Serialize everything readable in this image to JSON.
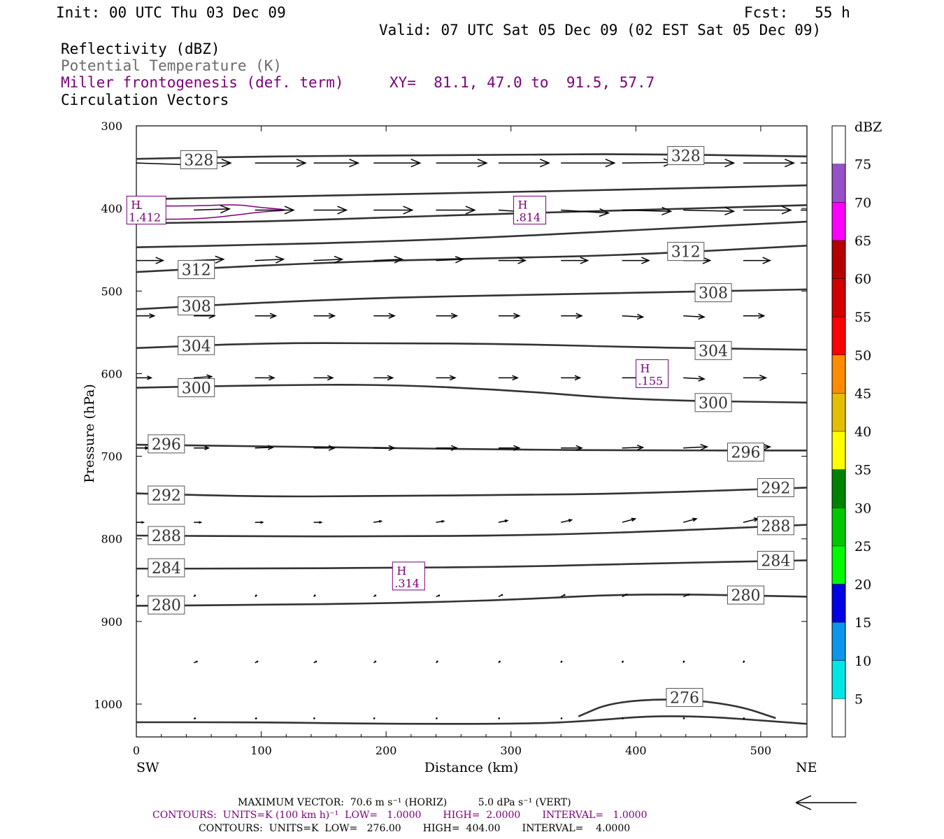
{
  "header": {
    "init": "Init: 00 UTC Thu 03 Dec 09",
    "fcst": "Fcst:   55 h",
    "valid": "Valid: 07 UTC Sat 05 Dec 09 (02 EST Sat 05 Dec 09)",
    "field1": "Reflectivity (dBZ)",
    "field2": "Potential Temperature (K)",
    "field3": "Miller frontogenesis (def. term)",
    "xy": "XY=  81.1, 47.0 to  91.5, 57.7",
    "field4": "Circulation Vectors"
  },
  "footer": {
    "max_vector": "MAXIMUM VECTOR:  70.6 m s⁻¹ (HORIZ)          5.0 dPa s⁻¹ (VERT)",
    "contours_fronto": "CONTOURS:  UNITS=K (100 km h)⁻¹  LOW=   1.0000       HIGH=  2.0000       INTERVAL=   1.0000",
    "contours_theta": "CONTOURS:  UNITS=K  LOW=   276.00       HIGH=  404.00       INTERVAL=    4.0000"
  },
  "colors": {
    "fronto": "#7a007a",
    "theta": "#333333",
    "vector": "#000000"
  },
  "chart_data": {
    "type": "cross-section",
    "xlabel": "Distance (km)",
    "ylabel": "Pressure (hPa)",
    "xlim": [
      0,
      537
    ],
    "ylim": [
      1040,
      300
    ],
    "x_ticks": [
      "0",
      "100",
      "200",
      "300",
      "400",
      "500"
    ],
    "x_tick_values": [
      0,
      100,
      200,
      300,
      400,
      500
    ],
    "y_ticks": [
      "300",
      "400",
      "500",
      "600",
      "700",
      "800",
      "900",
      "1000"
    ],
    "y_tick_values": [
      300,
      400,
      500,
      600,
      700,
      800,
      900,
      1000
    ],
    "left_end": "SW",
    "right_end": "NE",
    "colorbar": {
      "title": "dBZ",
      "labels": [
        "75",
        "70",
        "65",
        "60",
        "55",
        "50",
        "45",
        "40",
        "35",
        "30",
        "25",
        "20",
        "15",
        "10",
        "5"
      ],
      "bins": [
        {
          "from": 0,
          "to": 5,
          "color": "#ffffff"
        },
        {
          "from": 5,
          "to": 10,
          "color": "#00e6e6"
        },
        {
          "from": 10,
          "to": 15,
          "color": "#0a96eb"
        },
        {
          "from": 15,
          "to": 20,
          "color": "#0000e6"
        },
        {
          "from": 20,
          "to": 25,
          "color": "#00fa00"
        },
        {
          "from": 25,
          "to": 30,
          "color": "#00c800"
        },
        {
          "from": 30,
          "to": 35,
          "color": "#008200"
        },
        {
          "from": 35,
          "to": 40,
          "color": "#ffff00"
        },
        {
          "from": 40,
          "to": 45,
          "color": "#e6be00"
        },
        {
          "from": 45,
          "to": 50,
          "color": "#ff8c00"
        },
        {
          "from": 50,
          "to": 55,
          "color": "#ff0000"
        },
        {
          "from": 55,
          "to": 60,
          "color": "#d20000"
        },
        {
          "from": 60,
          "to": 65,
          "color": "#b40000"
        },
        {
          "from": 65,
          "to": 70,
          "color": "#ff00ff"
        },
        {
          "from": 70,
          "to": 75,
          "color": "#9650c8"
        },
        {
          "from": 75,
          "to": 80,
          "color": "#ffffff"
        }
      ]
    },
    "theta_contours": [
      {
        "level": 328,
        "label": "328",
        "points": [
          [
            0,
            340
          ],
          [
            100,
            337
          ],
          [
            200,
            336
          ],
          [
            300,
            335
          ],
          [
            400,
            334
          ],
          [
            537,
            337
          ]
        ],
        "labels_at": [
          [
            50,
            341
          ],
          [
            440,
            336
          ]
        ]
      },
      {
        "level": 324,
        "label": "",
        "points": [
          [
            0,
            389
          ],
          [
            100,
            386
          ],
          [
            200,
            383
          ],
          [
            300,
            380
          ],
          [
            400,
            377
          ],
          [
            537,
            372
          ]
        ],
        "labels_at": []
      },
      {
        "level": 320,
        "label": "",
        "points": [
          [
            0,
            418
          ],
          [
            100,
            416
          ],
          [
            200,
            411
          ],
          [
            300,
            406
          ],
          [
            400,
            402
          ],
          [
            537,
            396
          ]
        ],
        "labels_at": []
      },
      {
        "level": 316,
        "label": "",
        "points": [
          [
            0,
            447
          ],
          [
            100,
            444
          ],
          [
            200,
            440
          ],
          [
            300,
            434
          ],
          [
            400,
            426
          ],
          [
            537,
            416
          ]
        ],
        "labels_at": []
      },
      {
        "level": 312,
        "label": "312",
        "points": [
          [
            0,
            477
          ],
          [
            100,
            469
          ],
          [
            200,
            463
          ],
          [
            300,
            460
          ],
          [
            400,
            456
          ],
          [
            537,
            445
          ]
        ],
        "labels_at": [
          [
            48,
            474
          ],
          [
            440,
            452
          ]
        ]
      },
      {
        "level": 308,
        "label": "308",
        "points": [
          [
            0,
            522
          ],
          [
            100,
            514
          ],
          [
            200,
            508
          ],
          [
            300,
            505
          ],
          [
            400,
            502
          ],
          [
            537,
            498
          ]
        ],
        "labels_at": [
          [
            48,
            518
          ],
          [
            462,
            502
          ]
        ]
      },
      {
        "level": 304,
        "label": "304",
        "points": [
          [
            0,
            569
          ],
          [
            100,
            563
          ],
          [
            200,
            563
          ],
          [
            300,
            564
          ],
          [
            400,
            568
          ],
          [
            537,
            571
          ]
        ],
        "labels_at": [
          [
            48,
            566
          ],
          [
            462,
            572
          ]
        ]
      },
      {
        "level": 300,
        "label": "300",
        "points": [
          [
            0,
            617
          ],
          [
            100,
            614
          ],
          [
            200,
            613
          ],
          [
            300,
            620
          ],
          [
            400,
            632
          ],
          [
            537,
            635
          ]
        ],
        "labels_at": [
          [
            48,
            617
          ],
          [
            462,
            635
          ]
        ]
      },
      {
        "level": 296,
        "label": "296",
        "points": [
          [
            0,
            686
          ],
          [
            100,
            688
          ],
          [
            200,
            690
          ],
          [
            300,
            692
          ],
          [
            400,
            693
          ],
          [
            537,
            693
          ]
        ],
        "labels_at": [
          [
            24,
            685
          ],
          [
            488,
            695
          ]
        ]
      },
      {
        "level": 292,
        "label": "292",
        "points": [
          [
            0,
            745
          ],
          [
            100,
            749
          ],
          [
            200,
            748
          ],
          [
            300,
            747
          ],
          [
            400,
            745
          ],
          [
            537,
            738
          ]
        ],
        "labels_at": [
          [
            24,
            747
          ],
          [
            512,
            738
          ]
        ]
      },
      {
        "level": 288,
        "label": "288",
        "points": [
          [
            0,
            796
          ],
          [
            100,
            797
          ],
          [
            200,
            797
          ],
          [
            300,
            796
          ],
          [
            400,
            792
          ],
          [
            537,
            783
          ]
        ],
        "labels_at": [
          [
            24,
            796
          ],
          [
            512,
            784
          ]
        ]
      },
      {
        "level": 284,
        "label": "284",
        "points": [
          [
            0,
            836
          ],
          [
            100,
            836
          ],
          [
            200,
            835
          ],
          [
            300,
            834
          ],
          [
            400,
            830
          ],
          [
            537,
            826
          ]
        ],
        "labels_at": [
          [
            24,
            835
          ],
          [
            512,
            826
          ]
        ]
      },
      {
        "level": 280,
        "label": "280",
        "points": [
          [
            0,
            881
          ],
          [
            100,
            880
          ],
          [
            200,
            878
          ],
          [
            300,
            874
          ],
          [
            400,
            866
          ],
          [
            537,
            870
          ]
        ],
        "labels_at": [
          [
            24,
            880
          ],
          [
            488,
            868
          ]
        ]
      },
      {
        "level": 276,
        "label": "276",
        "points": [
          [
            354,
            1015
          ],
          [
            380,
            998
          ],
          [
            430,
            993
          ],
          [
            480,
            1001
          ],
          [
            512,
            1017
          ]
        ],
        "labels_at": [
          [
            439,
            992
          ]
        ]
      },
      {
        "level": 276,
        "label": "",
        "points": [
          [
            0,
            1022
          ],
          [
            100,
            1022
          ],
          [
            200,
            1024
          ],
          [
            300,
            1024
          ],
          [
            350,
            1022
          ],
          [
            430,
            1012
          ],
          [
            537,
            1024
          ]
        ],
        "labels_at": []
      }
    ],
    "frontogenesis_maxima": [
      {
        "label": "H",
        "value": ".314",
        "x": 218,
        "p": 845
      },
      {
        "label": "H",
        "value": ".155",
        "x": 413,
        "p": 600
      },
      {
        "label": "H",
        "value": ".814",
        "x": 315,
        "p": 402
      },
      {
        "label": "H",
        "value": "1.412",
        "x": 8,
        "p": 402
      }
    ],
    "frontogenesis_contour": {
      "level": 1.0,
      "points": [
        [
          5,
          397
        ],
        [
          50,
          397
        ],
        [
          80,
          395
        ],
        [
          100,
          399
        ],
        [
          125,
          402
        ],
        [
          100,
          404
        ],
        [
          80,
          408
        ],
        [
          50,
          413
        ],
        [
          5,
          413
        ]
      ]
    },
    "vector_rows": [
      {
        "p": 345,
        "x": [
          0,
          46,
          95,
          142,
          190,
          240,
          290,
          340,
          389,
          438,
          486,
          532
        ],
        "u": [
          0.9,
          0.62,
          0.85,
          0.75,
          0.78,
          0.85,
          0.85,
          0.9,
          0.85,
          0.85,
          0.85,
          0.85
        ],
        "w": [
          -0.03,
          0,
          0,
          0,
          0,
          0,
          0,
          0,
          0.01,
          0,
          0,
          0
        ]
      },
      {
        "p": 402,
        "x": [
          0,
          46,
          95,
          142,
          190,
          240,
          290,
          340,
          389,
          438,
          486,
          532
        ],
        "u": [
          0.35,
          0.6,
          0.65,
          0.55,
          0.65,
          0.65,
          0.75,
          0.8,
          0.82,
          0.85,
          0.8,
          0.7
        ],
        "w": [
          0,
          0.02,
          0,
          0,
          0,
          0,
          -0.05,
          -0.05,
          -0.02,
          -0.02,
          0,
          0
        ]
      },
      {
        "p": 463,
        "x": [
          0,
          46,
          95,
          142,
          190,
          240,
          290,
          340,
          389,
          438,
          486
        ],
        "u": [
          0.45,
          0.5,
          0.48,
          0.48,
          0.48,
          0.45,
          0.45,
          0.45,
          0.45,
          0.45,
          0.45
        ],
        "w": [
          0,
          0.02,
          0.02,
          0.02,
          0.02,
          0.02,
          0,
          0,
          0,
          0,
          0
        ]
      },
      {
        "p": 530,
        "x": [
          0,
          46,
          95,
          142,
          190,
          240,
          290,
          340,
          389,
          438,
          486
        ],
        "u": [
          0.3,
          0.35,
          0.35,
          0.35,
          0.35,
          0.35,
          0.35,
          0.35,
          0.35,
          0.35,
          0.35
        ],
        "w": [
          0,
          0,
          0,
          0,
          0,
          0,
          0,
          0,
          -0.02,
          -0.02,
          0
        ]
      },
      {
        "p": 605,
        "x": [
          0,
          46,
          95,
          142,
          190,
          240,
          290,
          340,
          389,
          438,
          486
        ],
        "u": [
          0.25,
          0.3,
          0.32,
          0.32,
          0.32,
          0.32,
          0.32,
          0.32,
          0.32,
          0.35,
          0.38
        ],
        "w": [
          0,
          0.02,
          0,
          0,
          0,
          0,
          0,
          0,
          0,
          -0.02,
          0
        ]
      },
      {
        "p": 690,
        "x": [
          0,
          46,
          95,
          142,
          190,
          240,
          290,
          340,
          389,
          438,
          486
        ],
        "u": [
          0.2,
          0.25,
          0.3,
          0.35,
          0.35,
          0.35,
          0.35,
          0.35,
          0.35,
          0.4,
          0.45
        ],
        "w": [
          0,
          0,
          0.01,
          0,
          0,
          0,
          0,
          0,
          0.01,
          0.02,
          0.02
        ]
      },
      {
        "p": 780,
        "x": [
          0,
          46,
          95,
          142,
          190,
          240,
          290,
          340,
          389,
          438,
          486
        ],
        "u": [
          0.12,
          0.12,
          0.13,
          0.13,
          0.13,
          0.13,
          0.15,
          0.18,
          0.22,
          0.22,
          0.25
        ],
        "w": [
          0,
          0,
          0,
          0,
          0.02,
          0.02,
          0.03,
          0.04,
          0.06,
          0.06,
          0.06
        ]
      },
      {
        "p": 870,
        "x": [
          0,
          46,
          95,
          142,
          190,
          240,
          290,
          340,
          389,
          438
        ],
        "u": [
          0.03,
          0.02,
          0.02,
          0.02,
          0.03,
          0.05,
          0.06,
          0.06,
          0.08,
          0.1
        ],
        "w": [
          0.02,
          0.02,
          0.02,
          0.02,
          0.02,
          0.02,
          0.03,
          0.03,
          0.04,
          0.04
        ]
      },
      {
        "p": 950,
        "x": [
          46,
          95,
          142,
          190,
          240,
          290,
          340,
          389,
          438,
          486
        ],
        "u": [
          0.05,
          0.04,
          0.04,
          0.03,
          0.02,
          0.02,
          0.01,
          0.01,
          0.01,
          0.01
        ],
        "w": [
          0.02,
          0.02,
          0.02,
          0.02,
          0.02,
          0.02,
          0.02,
          0.02,
          0.02,
          0.02
        ]
      },
      {
        "p": 1018,
        "x": [
          46,
          95,
          142,
          190,
          240,
          290,
          340,
          389,
          438,
          486
        ],
        "u": [
          0.02,
          0.02,
          0.01,
          0.01,
          0.01,
          0.01,
          0.01,
          0.01,
          0.01,
          0.01
        ],
        "w": [
          0.01,
          0.01,
          0.01,
          0.01,
          0.01,
          0.01,
          0.01,
          0.01,
          0.01,
          0.01
        ]
      }
    ]
  }
}
